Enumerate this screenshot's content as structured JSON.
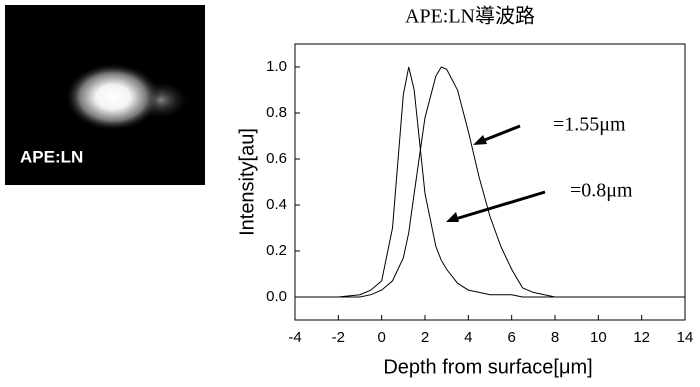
{
  "inset": {
    "label": "APE:LN"
  },
  "chart_data": {
    "type": "line",
    "title": "APE:LN導波路",
    "x_label": "Depth from surface[μm]",
    "y_label": "Intensity[au]",
    "x": [
      -4,
      -2,
      -1,
      -0.5,
      0,
      0.5,
      1,
      1.25,
      1.5,
      2,
      2.5,
      2.75,
      3,
      3.5,
      4,
      4.5,
      5,
      5.5,
      6,
      6.5,
      7,
      8,
      10,
      12,
      14
    ],
    "series": [
      {
        "color": "#000000",
        "values": [
          0,
          0,
          0.01,
          0.03,
          0.07,
          0.3,
          0.88,
          1.0,
          0.9,
          0.45,
          0.22,
          0.16,
          0.12,
          0.06,
          0.03,
          0.02,
          0.01,
          0.01,
          0.01,
          0,
          0,
          0,
          0,
          0,
          0
        ]
      },
      {
        "color": "#000000",
        "values": [
          0,
          0,
          0,
          0.01,
          0.03,
          0.07,
          0.17,
          0.28,
          0.45,
          0.78,
          0.96,
          1.0,
          0.99,
          0.9,
          0.72,
          0.52,
          0.35,
          0.22,
          0.12,
          0.04,
          0.02,
          0,
          0,
          0,
          0
        ]
      }
    ],
    "annotations": [
      "=1.55μm",
      "=0.8μm"
    ],
    "xlim": [
      -4,
      14
    ],
    "xticks": [
      -4,
      -2,
      0,
      2,
      4,
      6,
      8,
      10,
      12,
      14
    ],
    "ylim": [
      -0.1,
      1.1
    ],
    "yticks": [
      {
        "value": 0,
        "label": "0.0"
      },
      0.2,
      0.4,
      0.6,
      0.8,
      {
        "value": 1,
        "label": "1.0"
      }
    ]
  }
}
